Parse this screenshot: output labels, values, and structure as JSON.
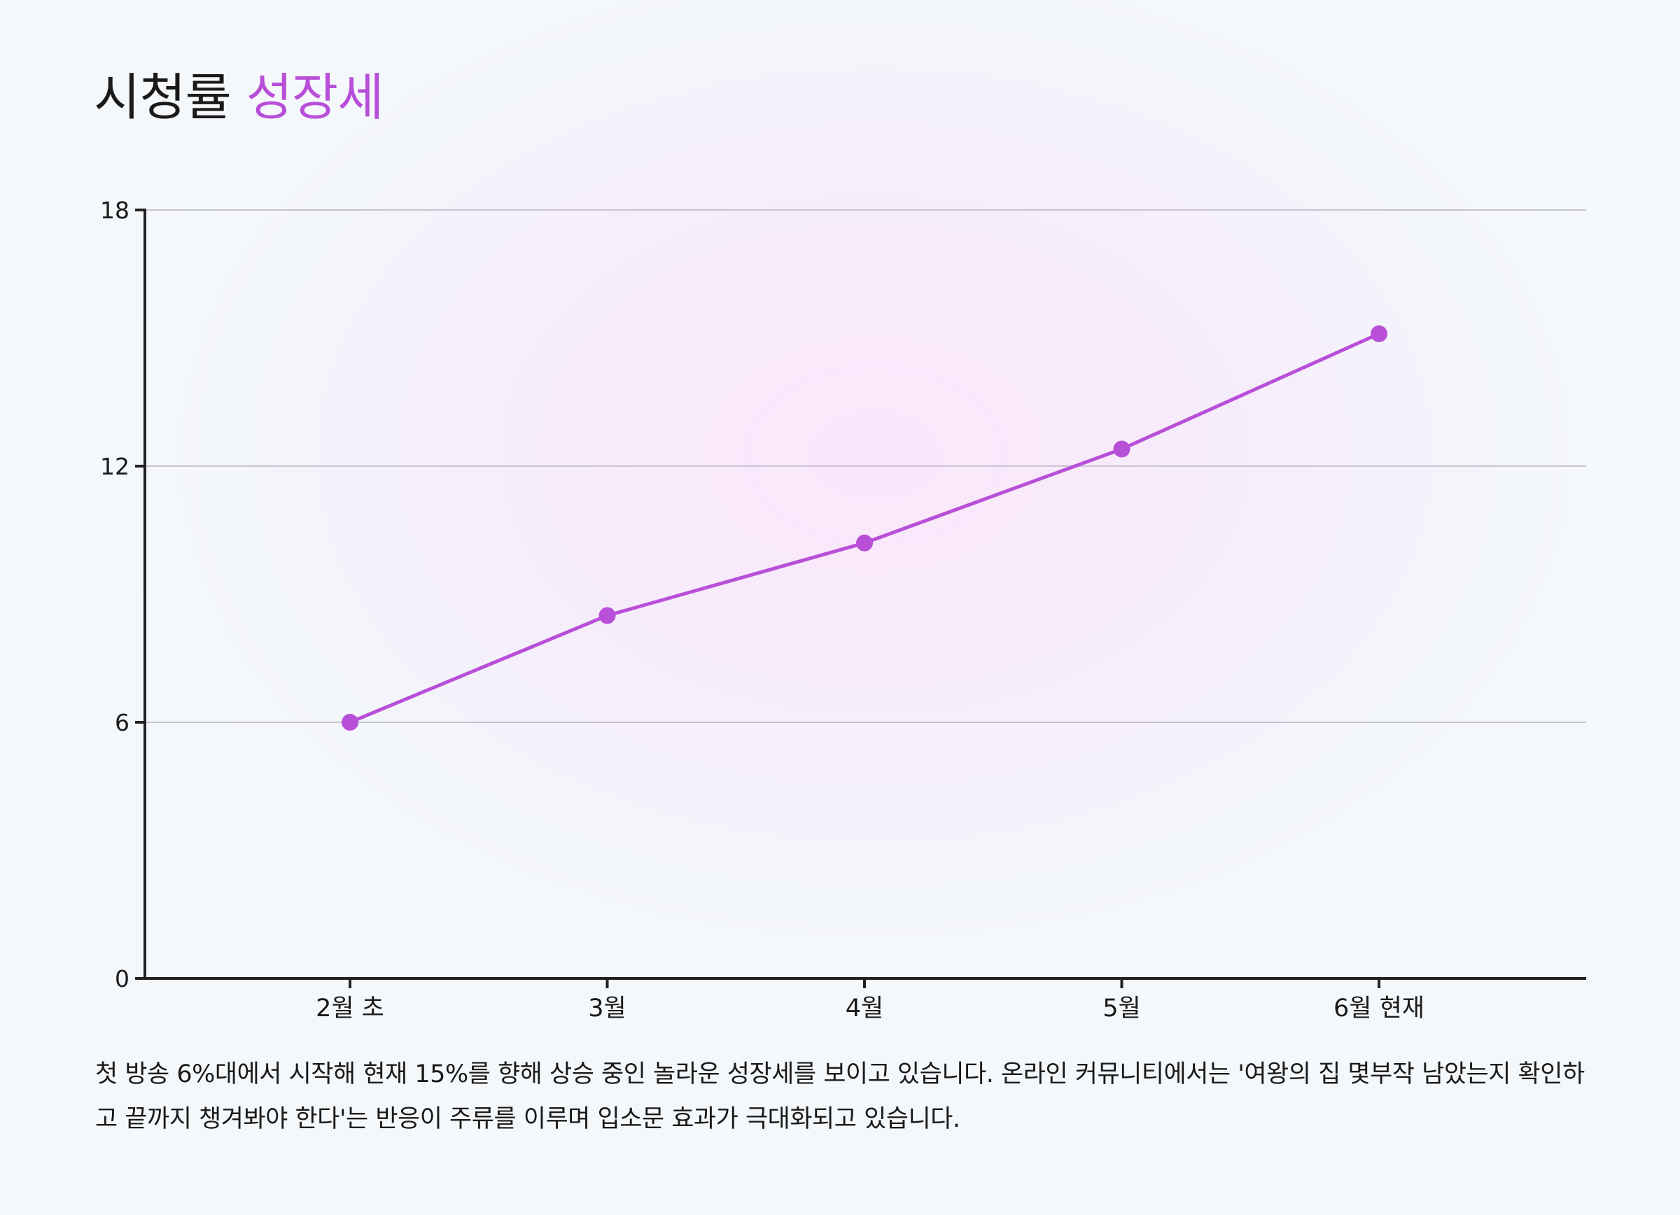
{
  "title": {
    "main": "시청률",
    "accent": "성장세"
  },
  "chart_data": {
    "type": "line",
    "title": "시청률 성장세",
    "categories": [
      "2월 초",
      "3월",
      "4월",
      "5월",
      "6월 현재"
    ],
    "series": [
      {
        "values": [
          6.0,
          8.5,
          10.2,
          12.4,
          15.1
        ]
      }
    ],
    "ylim": [
      0,
      18
    ],
    "yticks": [
      0,
      6,
      12,
      18
    ],
    "xlabel": "",
    "ylabel": "",
    "grid": true,
    "line_color": "#b84fd8"
  },
  "description": "첫 방송 6%대에서 시작해 현재 15%를 향해 상승 중인 놀라운 성장세를 보이고 있습니다. 온라인 커뮤니티에서는 '여왕의 집 몇부작 남았는지 확인하고 끝까지 챙겨봐야 한다'는 반응이 주류를 이루며 입소문 효과가 극대화되고 있습니다.",
  "colors": {
    "accent": "#b84fd8",
    "axis": "#222222",
    "grid": "#c9c3d3",
    "text": "#1a1a1a"
  }
}
